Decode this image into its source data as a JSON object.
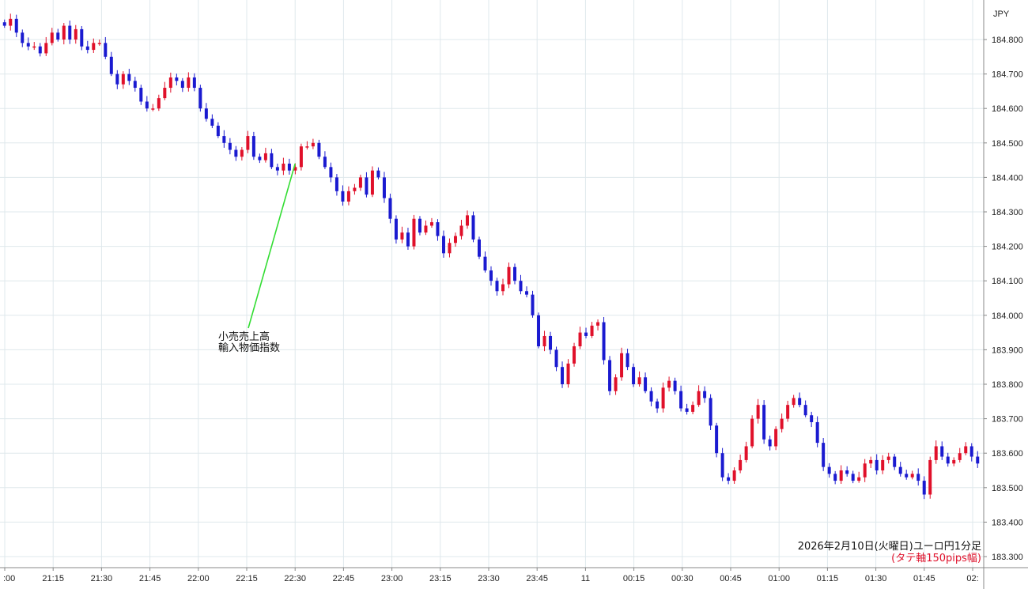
{
  "chart_data": {
    "type": "candlestick",
    "currency": "JPY",
    "caption_line1": "2026年2月10日(火曜日)ユーロ円1分足",
    "caption_line2": "(タテ軸150pips幅)",
    "annotation_lines": [
      "小売売上高",
      "輸入物価指数"
    ],
    "annotation_time": "22:30",
    "annotation_value": 184.44,
    "y_ticks": [
      "184.800",
      "184.700",
      "184.600",
      "184.500",
      "184.400",
      "184.300",
      "184.200",
      "184.100",
      "184.000",
      "183.900",
      "183.800",
      "183.700",
      "183.600",
      "183.500",
      "183.400",
      "183.300"
    ],
    "x_ticks": [
      ":00",
      "21:15",
      "21:30",
      "21:45",
      "22:00",
      "22:15",
      "22:30",
      "22:45",
      "23:00",
      "23:15",
      "23:30",
      "23:45",
      "11",
      "00:15",
      "00:30",
      "00:45",
      "01:00",
      "01:15",
      "01:30",
      "01:45",
      "02:"
    ],
    "ylim": [
      183.28,
      184.9
    ],
    "grid": true,
    "colors": {
      "up": "#e0102a",
      "down": "#1a1ad0",
      "grid": "#dfe8ec",
      "annotation_line": "#33dd33"
    },
    "closes": [
      184.84,
      184.86,
      184.82,
      184.79,
      184.78,
      184.78,
      184.76,
      184.79,
      184.82,
      184.8,
      184.84,
      184.8,
      184.83,
      184.78,
      184.77,
      184.79,
      184.79,
      184.75,
      184.7,
      184.67,
      184.7,
      184.68,
      184.66,
      184.62,
      184.6,
      184.6,
      184.63,
      184.66,
      184.69,
      184.68,
      184.66,
      184.69,
      184.66,
      184.6,
      184.57,
      184.55,
      184.52,
      184.5,
      184.48,
      184.46,
      184.48,
      184.52,
      184.46,
      184.45,
      184.47,
      184.43,
      184.42,
      184.44,
      184.42,
      184.43,
      184.49,
      184.49,
      184.5,
      184.46,
      184.43,
      184.4,
      184.36,
      184.33,
      184.36,
      184.37,
      184.4,
      184.35,
      184.42,
      184.4,
      184.34,
      184.28,
      184.22,
      184.24,
      184.2,
      184.28,
      184.24,
      184.26,
      184.27,
      184.23,
      184.18,
      184.21,
      184.23,
      184.26,
      184.29,
      184.22,
      184.17,
      184.13,
      184.1,
      184.07,
      184.09,
      184.14,
      184.1,
      184.07,
      184.06,
      184.0,
      183.91,
      183.94,
      183.9,
      183.85,
      183.8,
      183.86,
      183.91,
      183.95,
      183.94,
      183.97,
      183.98,
      183.87,
      183.78,
      183.82,
      183.89,
      183.85,
      183.8,
      183.82,
      183.78,
      183.75,
      183.73,
      183.79,
      183.81,
      183.78,
      183.73,
      183.72,
      183.74,
      183.78,
      183.76,
      183.68,
      183.6,
      183.53,
      183.52,
      183.55,
      183.58,
      183.62,
      183.7,
      183.74,
      183.64,
      183.62,
      183.67,
      183.7,
      183.74,
      183.76,
      183.74,
      183.71,
      183.69,
      183.63,
      183.56,
      183.54,
      183.52,
      183.55,
      183.54,
      183.52,
      183.53,
      183.57,
      183.58,
      183.55,
      183.58,
      183.59,
      183.56,
      183.54,
      183.53,
      183.54,
      183.52,
      183.48,
      183.58,
      183.62,
      183.59,
      183.57,
      183.58,
      183.6,
      183.62,
      183.59,
      183.57
    ]
  }
}
